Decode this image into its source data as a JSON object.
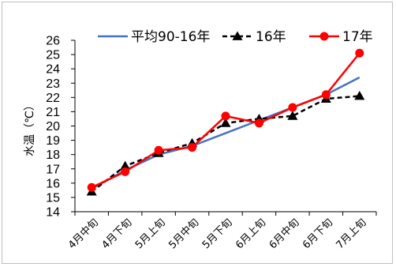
{
  "chart_data": {
    "type": "line",
    "categories": [
      "4月中旬",
      "4月下旬",
      "5月上旬",
      "5月中旬",
      "5月下旬",
      "6月上旬",
      "6月中旬",
      "6月下旬",
      "7月上旬"
    ],
    "ylabel": "水温（℃）",
    "ylim": [
      14,
      26
    ],
    "yticks": [
      "14",
      "15",
      "16",
      "17",
      "18",
      "19",
      "20",
      "21",
      "22",
      "23",
      "24",
      "25",
      "26"
    ],
    "grid": false,
    "legend_position": "top",
    "series": [
      {
        "name": "平均90-16年",
        "color": "#4472c4",
        "style": "solid",
        "marker": "none",
        "values": [
          15.6,
          16.9,
          18.0,
          18.6,
          19.5,
          20.4,
          21.3,
          22.2,
          23.4
        ]
      },
      {
        "name": "16年",
        "color": "#000000",
        "style": "dashed",
        "marker": "triangle",
        "values": [
          15.4,
          17.2,
          18.1,
          18.8,
          20.2,
          20.5,
          20.7,
          21.9,
          22.1
        ]
      },
      {
        "name": "17年",
        "color": "#ff0000",
        "style": "solid",
        "marker": "circle",
        "values": [
          15.7,
          16.8,
          18.3,
          18.5,
          20.7,
          20.2,
          21.3,
          22.2,
          25.1
        ]
      }
    ]
  }
}
